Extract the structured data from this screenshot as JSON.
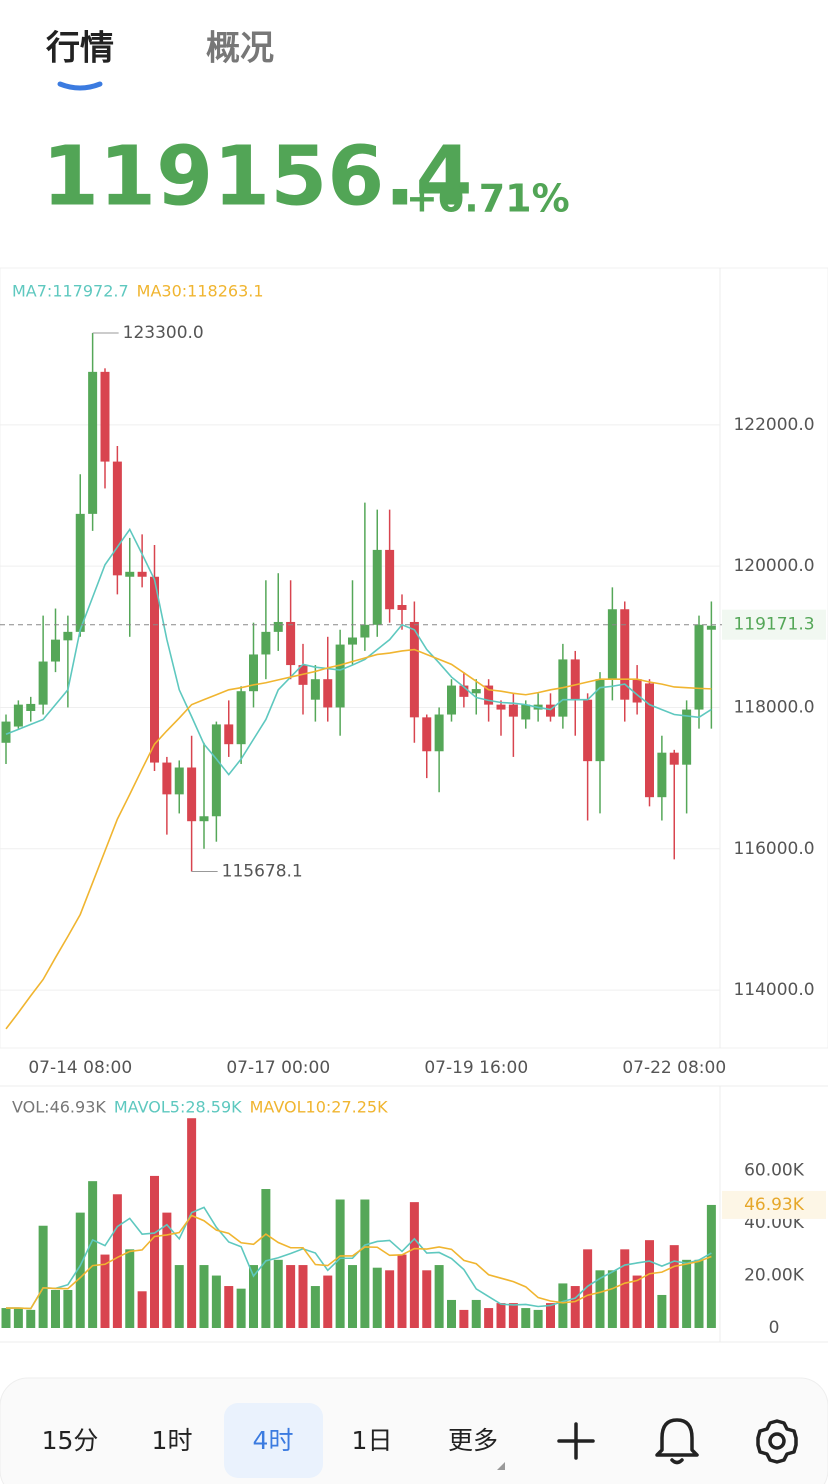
{
  "tabs": [
    "行情",
    "概况"
  ],
  "price": "119156.4",
  "change": "+0.71%",
  "timeframes": [
    "15分",
    "1时",
    "4时",
    "1日",
    "更多"
  ],
  "chart_data": [
    {
      "type": "candlestick",
      "categories": [
        null,
        null,
        null,
        null,
        null,
        null,
        "07-14 08:00",
        null,
        null,
        null,
        null,
        null,
        null,
        null,
        null,
        null,
        null,
        null,
        null,
        null,
        null,
        null,
        "07-17 00:00",
        null,
        null,
        null,
        null,
        null,
        null,
        null,
        null,
        null,
        null,
        null,
        null,
        null,
        null,
        null,
        "07-19 16:00",
        null,
        null,
        null,
        null,
        null,
        null,
        null,
        null,
        null,
        null,
        null,
        null,
        null,
        null,
        null,
        "07-22 08:00",
        null,
        null,
        null
      ],
      "open": [
        117500,
        117730,
        117950,
        118040,
        118650,
        118950,
        119070,
        120740,
        122750,
        121480,
        119850,
        119920,
        119850,
        117220,
        116770,
        117150,
        116390,
        116460,
        117760,
        117480,
        118230,
        118750,
        119070,
        119210,
        118600,
        118110,
        118400,
        118000,
        118890,
        118990,
        119170,
        120230,
        119450,
        119210,
        117860,
        117380,
        117900,
        118310,
        118200,
        118310,
        118040,
        118040,
        117830,
        117970,
        118040,
        117870,
        118680,
        118110,
        117240,
        118400,
        119390,
        118400,
        118340,
        116730,
        117360,
        117190,
        117970,
        119100
      ],
      "high": [
        117900,
        118100,
        118150,
        119300,
        119400,
        119300,
        121300,
        123300,
        122800,
        121700,
        120400,
        120450,
        120300,
        117300,
        117250,
        117600,
        117500,
        117800,
        118100,
        118300,
        119200,
        119800,
        119900,
        119800,
        118900,
        118600,
        119000,
        119100,
        119800,
        120900,
        120800,
        120800,
        119600,
        119500,
        117900,
        118000,
        118400,
        118500,
        118400,
        118400,
        118100,
        118200,
        118100,
        118200,
        118200,
        118900,
        118800,
        118200,
        118500,
        119700,
        119500,
        118600,
        118400,
        117600,
        117400,
        118100,
        119300,
        119500
      ],
      "low": [
        117200,
        117700,
        117800,
        117900,
        118500,
        118000,
        119000,
        120500,
        121100,
        119600,
        119000,
        119700,
        117100,
        116200,
        116500,
        115678.1,
        116000,
        116100,
        117300,
        117200,
        118000,
        118400,
        118800,
        118400,
        117900,
        117800,
        117800,
        117600,
        118600,
        118800,
        119000,
        119200,
        119100,
        117500,
        117000,
        116800,
        117800,
        118000,
        117900,
        117800,
        117600,
        117300,
        117700,
        117800,
        117800,
        117700,
        117600,
        116400,
        116500,
        118100,
        117800,
        117900,
        116600,
        116400,
        115850,
        116500,
        117700,
        117700
      ],
      "close": [
        117800,
        118040,
        118050,
        118650,
        118960,
        119070,
        120740,
        122750,
        121480,
        119870,
        119920,
        119850,
        117220,
        116770,
        117150,
        116390,
        116460,
        117760,
        117480,
        118230,
        118750,
        119070,
        119210,
        118600,
        118320,
        118400,
        118000,
        118890,
        118990,
        119170,
        120230,
        119390,
        119380,
        117860,
        117380,
        117900,
        118310,
        118150,
        118260,
        118040,
        117970,
        117870,
        118040,
        118040,
        117870,
        118680,
        118110,
        117240,
        118400,
        119390,
        118110,
        118070,
        116730,
        117360,
        117190,
        117970,
        119170,
        119156.4
      ],
      "up_color": "#55a758",
      "down_color": "#d8444f",
      "series": [
        {
          "name": "MA7:117972.7",
          "color": "#5ec8bf",
          "values": [
            117620,
            117690,
            117760,
            117830,
            118040,
            118250,
            119100,
            119560,
            120020,
            120270,
            120520,
            120170,
            119810,
            118960,
            118250,
            117870,
            117480,
            117270,
            117050,
            117270,
            117550,
            117830,
            118250,
            118430,
            118610,
            118570,
            118550,
            118530,
            118600,
            118680,
            118820,
            118960,
            119170,
            119100,
            118820,
            118630,
            118430,
            118290,
            118140,
            118100,
            118070,
            118060,
            118040,
            118000,
            117970,
            118110,
            118110,
            118110,
            118280,
            118300,
            118330,
            118180,
            118040,
            117970,
            117900,
            117880,
            117860,
            117972.7
          ]
        },
        {
          "name": "MA30:118263.1",
          "color": "#f0b530",
          "values": [
            113450,
            113680,
            113920,
            114150,
            114460,
            114760,
            115070,
            115520,
            115970,
            116420,
            116770,
            117130,
            117480,
            117670,
            117850,
            118040,
            118110,
            118180,
            118250,
            118280,
            118320,
            118350,
            118390,
            118430,
            118470,
            118510,
            118560,
            118600,
            118650,
            118700,
            118750,
            118770,
            118800,
            118820,
            118750,
            118680,
            118610,
            118490,
            118370,
            118250,
            118230,
            118200,
            118180,
            118210,
            118250,
            118280,
            118320,
            118360,
            118400,
            118400,
            118400,
            118400,
            118360,
            118330,
            118290,
            118280,
            118270,
            118263.1
          ]
        }
      ],
      "ylim": [
        113180,
        124220
      ],
      "yticks": [
        {
          "value": 114000,
          "label": "114000.0"
        },
        {
          "value": 116000,
          "label": "116000.0"
        },
        {
          "value": 118000,
          "label": "118000.0"
        },
        {
          "value": 120000,
          "label": "120000.0"
        },
        {
          "value": 122000,
          "label": "122000.0"
        }
      ],
      "grid": true,
      "price_line": 119171.3,
      "high_label": "123300.0",
      "low_label": "115678.1"
    },
    {
      "type": "bar",
      "name": "VOL:46.93K",
      "values": [
        7600,
        7600,
        6900,
        39000,
        14500,
        14500,
        44000,
        56000,
        28000,
        51000,
        30000,
        14000,
        58000,
        44000,
        24000,
        80000,
        24000,
        20000,
        16000,
        15000,
        24000,
        53000,
        26000,
        24000,
        24000,
        16000,
        20000,
        49000,
        24000,
        49000,
        23000,
        22000,
        28000,
        48000,
        22000,
        24000,
        10700,
        6900,
        10700,
        7600,
        9500,
        9500,
        7600,
        6900,
        9500,
        17000,
        16000,
        30000,
        22000,
        22000,
        30000,
        20000,
        33500,
        12600,
        31600,
        26000,
        26000,
        46930
      ],
      "series": [
        {
          "name": "MAVOL5:28.59K",
          "color": "#5ec8bf",
          "values": [
            7600,
            7600,
            7400,
            15300,
            15100,
            16500,
            23800,
            33600,
            31400,
            38700,
            41800,
            35800,
            36200,
            39400,
            34000,
            44000,
            46000,
            38400,
            32800,
            31000,
            19800,
            25600,
            26800,
            28400,
            30200,
            28600,
            22000,
            26600,
            26600,
            31600,
            33000,
            33400,
            29200,
            34000,
            28600,
            28800,
            26500,
            22300,
            14900,
            12000,
            9100,
            8800,
            9000,
            8200,
            8600,
            10100,
            11400,
            15900,
            18900,
            21400,
            24000,
            24800,
            25500,
            23600,
            25500,
            24700,
            25900,
            28590
          ]
        },
        {
          "name": "MAVOL10:27.25K",
          "color": "#f0b530",
          "values": [
            7600,
            7600,
            7400,
            15300,
            15100,
            15000,
            19200,
            23800,
            24300,
            26900,
            29200,
            29800,
            34900,
            35500,
            36400,
            42900,
            40900,
            37300,
            36100,
            32500,
            31900,
            35800,
            32600,
            30600,
            30600,
            24200,
            23800,
            27500,
            27500,
            30900,
            30800,
            27700,
            27900,
            30300,
            30100,
            30900,
            30000,
            25800,
            24500,
            20300,
            19000,
            17700,
            15700,
            11600,
            10300,
            9600,
            10100,
            12500,
            13600,
            15000,
            17100,
            18100,
            20700,
            21300,
            23500,
            24400,
            25400,
            27250
          ]
        }
      ],
      "ylim": [
        0,
        90000
      ],
      "yticks": [
        0,
        {
          "value": 20000,
          "label": "20.00K"
        },
        {
          "value": 40000,
          "label": "40.00K"
        },
        {
          "value": 60000,
          "label": "60.00K"
        }
      ],
      "last_marker": {
        "value": 46930,
        "label": "46.93K"
      }
    }
  ]
}
